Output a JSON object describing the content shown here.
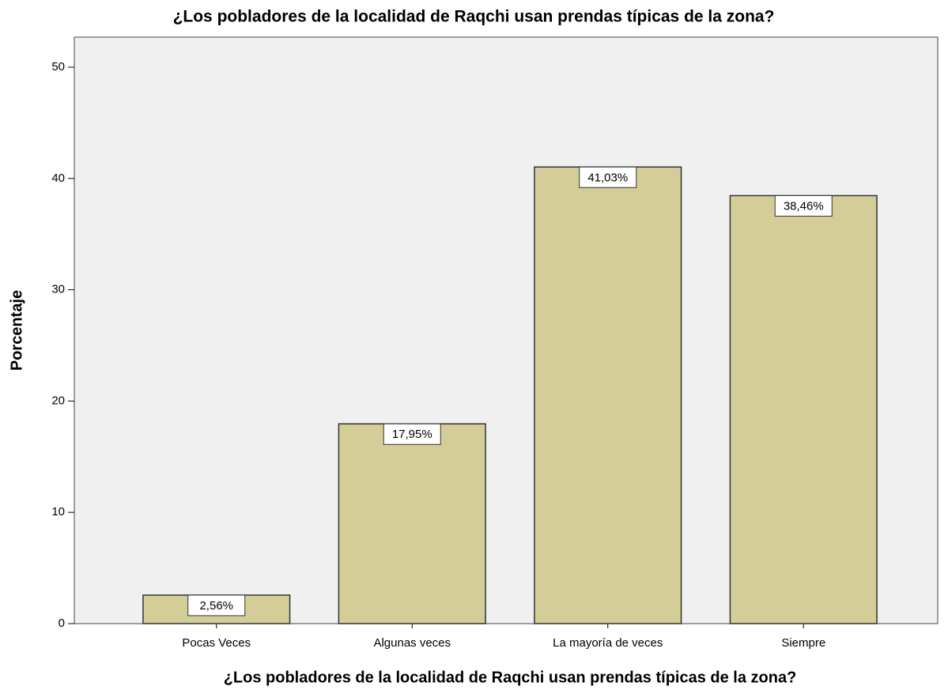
{
  "chart_data": {
    "type": "bar",
    "title": "¿Los pobladores de la localidad de Raqchi usan prendas típicas de la zona?",
    "x_label": "¿Los pobladores de la localidad de Raqchi usan prendas típicas de la zona?",
    "y_label": "Porcentaje",
    "categories": [
      "Pocas Veces",
      "Algunas veces",
      "La mayoría de veces",
      "Siempre"
    ],
    "values": [
      2.56,
      17.95,
      41.03,
      38.46
    ],
    "value_labels": [
      "2,56%",
      "17,95%",
      "41,03%",
      "38,46%"
    ],
    "color": "#d3cd97",
    "ylim": [
      0,
      52.7
    ],
    "yticks": [
      0,
      10,
      20,
      30,
      40,
      50
    ],
    "grid": false
  }
}
